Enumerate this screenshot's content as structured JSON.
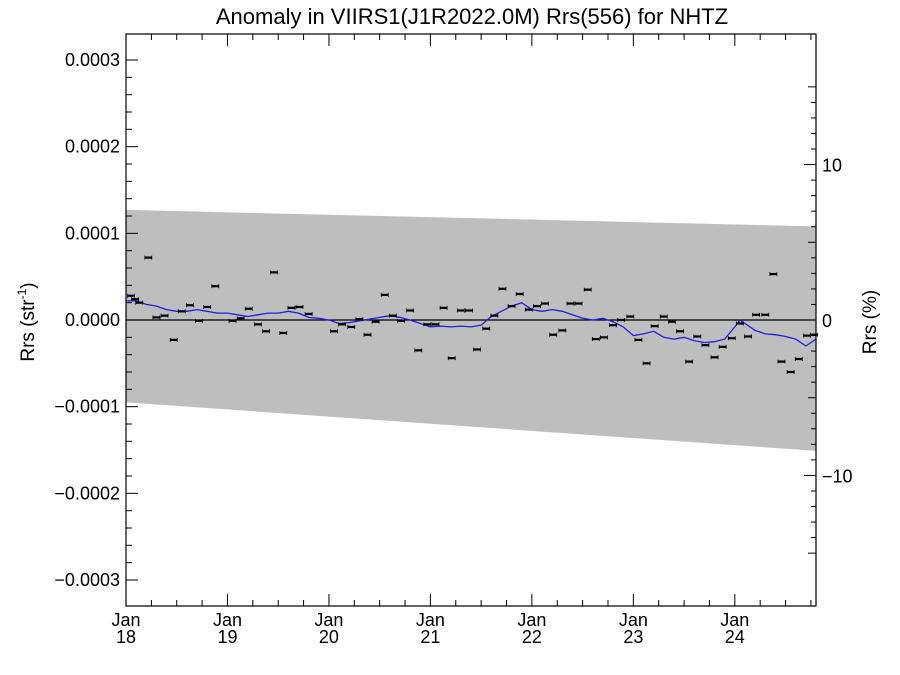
{
  "chart_data": {
    "type": "scatter",
    "title": "Anomaly in VIIRS1(J1R2022.0M) Rrs(556) for NHTZ",
    "ylabel_left": {
      "base": "Rrs (str",
      "sup": "-1",
      "close": ")"
    },
    "ylabel_right": "Rrs (%)",
    "xlim": [
      2018.0,
      2024.8
    ],
    "ylim": [
      -0.00033,
      0.00033
    ],
    "ylim_right_percent": [
      -18.4,
      18.4
    ],
    "x_ticks": [
      {
        "value": 2018,
        "month": "Jan",
        "year": "18"
      },
      {
        "value": 2019,
        "month": "Jan",
        "year": "19"
      },
      {
        "value": 2020,
        "month": "Jan",
        "year": "20"
      },
      {
        "value": 2021,
        "month": "Jan",
        "year": "21"
      },
      {
        "value": 2022,
        "month": "Jan",
        "year": "22"
      },
      {
        "value": 2023,
        "month": "Jan",
        "year": "23"
      },
      {
        "value": 2024,
        "month": "Jan",
        "year": "24"
      }
    ],
    "y_ticks_left": [
      {
        "value": 0.0003,
        "label": "0.0003"
      },
      {
        "value": 0.0002,
        "label": "0.0002"
      },
      {
        "value": 0.0001,
        "label": "0.0001"
      },
      {
        "value": 0.0,
        "label": "0.0000"
      },
      {
        "value": -0.0001,
        "label": "−0.0001"
      },
      {
        "value": -0.0002,
        "label": "−0.0002"
      },
      {
        "value": -0.0003,
        "label": "−0.0003"
      }
    ],
    "y_ticks_right": [
      {
        "value": 10,
        "label": "10"
      },
      {
        "value": 0,
        "label": "0"
      },
      {
        "value": -10,
        "label": "−10"
      }
    ],
    "band": {
      "color": "#bebebe",
      "upper": [
        [
          2018.0,
          0.000127
        ],
        [
          2024.8,
          0.000108
        ]
      ],
      "lower": [
        [
          2018.0,
          -9.5e-05
        ],
        [
          2024.8,
          -0.000151
        ]
      ]
    },
    "zero_line": true,
    "points_color": "#000000",
    "points": [
      [
        2018.05,
        2.8e-05
      ],
      [
        2018.09,
        2.4e-05
      ],
      [
        2018.13,
        2e-05
      ],
      [
        2018.22,
        7.2e-05
      ],
      [
        2018.3,
        3e-06
      ],
      [
        2018.38,
        5e-06
      ],
      [
        2018.47,
        -2.3e-05
      ],
      [
        2018.55,
        1e-05
      ],
      [
        2018.63,
        1.7e-05
      ],
      [
        2018.72,
        -1e-06
      ],
      [
        2018.8,
        1.5e-05
      ],
      [
        2018.88,
        3.9e-05
      ],
      [
        2019.05,
        -1e-06
      ],
      [
        2019.13,
        2e-06
      ],
      [
        2019.21,
        1.3e-05
      ],
      [
        2019.3,
        -5e-06
      ],
      [
        2019.38,
        -1.3e-05
      ],
      [
        2019.46,
        5.5e-05
      ],
      [
        2019.55,
        -1.5e-05
      ],
      [
        2019.63,
        1.4e-05
      ],
      [
        2019.71,
        1.5e-05
      ],
      [
        2019.8,
        7e-06
      ],
      [
        2020.05,
        -1.3e-05
      ],
      [
        2020.13,
        -5e-06
      ],
      [
        2020.22,
        -8e-06
      ],
      [
        2020.3,
        1e-06
      ],
      [
        2020.38,
        -1.7e-05
      ],
      [
        2020.46,
        -2e-06
      ],
      [
        2020.55,
        2.9e-05
      ],
      [
        2020.63,
        5e-06
      ],
      [
        2020.71,
        -1e-06
      ],
      [
        2020.8,
        1.1e-05
      ],
      [
        2020.88,
        -3.5e-05
      ],
      [
        2020.97,
        -5e-06
      ],
      [
        2021.05,
        -5e-06
      ],
      [
        2021.13,
        1.4e-05
      ],
      [
        2021.21,
        -4.4e-05
      ],
      [
        2021.3,
        1.1e-05
      ],
      [
        2021.38,
        1.1e-05
      ],
      [
        2021.46,
        -3.4e-05
      ],
      [
        2021.55,
        -1e-05
      ],
      [
        2021.63,
        5e-06
      ],
      [
        2021.71,
        3.6e-05
      ],
      [
        2021.8,
        1.6e-05
      ],
      [
        2021.88,
        3e-05
      ],
      [
        2021.97,
        1.2e-05
      ],
      [
        2022.05,
        1.6e-05
      ],
      [
        2022.13,
        1.9e-05
      ],
      [
        2022.21,
        -1.7e-05
      ],
      [
        2022.3,
        -1.2e-05
      ],
      [
        2022.38,
        1.9e-05
      ],
      [
        2022.46,
        1.9e-05
      ],
      [
        2022.55,
        3.5e-05
      ],
      [
        2022.63,
        -2.2e-05
      ],
      [
        2022.71,
        -2e-05
      ],
      [
        2022.8,
        -6e-06
      ],
      [
        2022.88,
        0.0
      ],
      [
        2022.97,
        4e-06
      ],
      [
        2023.05,
        -2.3e-05
      ],
      [
        2023.13,
        -5e-05
      ],
      [
        2023.21,
        -7e-06
      ],
      [
        2023.3,
        4e-06
      ],
      [
        2023.38,
        -2e-06
      ],
      [
        2023.46,
        -1.3e-05
      ],
      [
        2023.55,
        -4.8e-05
      ],
      [
        2023.63,
        -1.9e-05
      ],
      [
        2023.71,
        -2.9e-05
      ],
      [
        2023.8,
        -4.3e-05
      ],
      [
        2023.88,
        -3.1e-05
      ],
      [
        2023.97,
        -2.1e-05
      ],
      [
        2024.05,
        -4e-06
      ],
      [
        2024.13,
        -1.9e-05
      ],
      [
        2024.21,
        6e-06
      ],
      [
        2024.3,
        6e-06
      ],
      [
        2024.38,
        5.3e-05
      ],
      [
        2024.46,
        -4.8e-05
      ],
      [
        2024.55,
        -6e-05
      ],
      [
        2024.63,
        -4.5e-05
      ],
      [
        2024.71,
        -1.8e-05
      ],
      [
        2024.78,
        -1.7e-05
      ]
    ],
    "trend_color": "#1f1fe0",
    "trend": [
      [
        2018.0,
        2.2e-05
      ],
      [
        2018.1,
        2.2e-05
      ],
      [
        2018.2,
        1.8e-05
      ],
      [
        2018.3,
        1.6e-05
      ],
      [
        2018.4,
        1.2e-05
      ],
      [
        2018.5,
        1e-05
      ],
      [
        2018.6,
        1e-05
      ],
      [
        2018.7,
        1.2e-05
      ],
      [
        2018.8,
        1e-05
      ],
      [
        2018.9,
        8e-06
      ],
      [
        2019.0,
        8e-06
      ],
      [
        2019.1,
        6e-06
      ],
      [
        2019.2,
        4e-06
      ],
      [
        2019.3,
        6e-06
      ],
      [
        2019.4,
        8e-06
      ],
      [
        2019.5,
        8e-06
      ],
      [
        2019.6,
        1e-05
      ],
      [
        2019.7,
        8e-06
      ],
      [
        2019.8,
        3e-06
      ],
      [
        2019.9,
        2e-06
      ],
      [
        2020.0,
        0.0
      ],
      [
        2020.1,
        -4e-06
      ],
      [
        2020.2,
        -3e-06
      ],
      [
        2020.3,
        -1e-06
      ],
      [
        2020.4,
        1e-06
      ],
      [
        2020.5,
        3e-06
      ],
      [
        2020.6,
        5e-06
      ],
      [
        2020.7,
        3e-06
      ],
      [
        2020.8,
        0.0
      ],
      [
        2020.9,
        -4e-06
      ],
      [
        2021.0,
        -8e-06
      ],
      [
        2021.1,
        -7e-06
      ],
      [
        2021.2,
        -8e-06
      ],
      [
        2021.3,
        -7e-06
      ],
      [
        2021.4,
        -8e-06
      ],
      [
        2021.5,
        -6e-06
      ],
      [
        2021.6,
        4e-06
      ],
      [
        2021.7,
        1e-05
      ],
      [
        2021.8,
        1.6e-05
      ],
      [
        2021.9,
        2e-05
      ],
      [
        2022.0,
        1.2e-05
      ],
      [
        2022.1,
        1e-05
      ],
      [
        2022.2,
        1.2e-05
      ],
      [
        2022.3,
        1e-05
      ],
      [
        2022.4,
        6e-06
      ],
      [
        2022.5,
        2e-06
      ],
      [
        2022.6,
        0.0
      ],
      [
        2022.7,
        2e-06
      ],
      [
        2022.8,
        -2e-06
      ],
      [
        2022.9,
        -8e-06
      ],
      [
        2023.0,
        -1.8e-05
      ],
      [
        2023.1,
        -1.6e-05
      ],
      [
        2023.2,
        -1.3e-05
      ],
      [
        2023.3,
        -2e-05
      ],
      [
        2023.4,
        -2.2e-05
      ],
      [
        2023.5,
        -2e-05
      ],
      [
        2023.6,
        -2.4e-05
      ],
      [
        2023.7,
        -2.6e-05
      ],
      [
        2023.8,
        -2.5e-05
      ],
      [
        2023.9,
        -2.2e-05
      ],
      [
        2024.0,
        -8e-06
      ],
      [
        2024.05,
        0.0
      ],
      [
        2024.1,
        -4e-06
      ],
      [
        2024.2,
        -1.2e-05
      ],
      [
        2024.3,
        -1.6e-05
      ],
      [
        2024.4,
        -1.7e-05
      ],
      [
        2024.5,
        -1.9e-05
      ],
      [
        2024.6,
        -2.2e-05
      ],
      [
        2024.7,
        -3e-05
      ],
      [
        2024.8,
        -2.2e-05
      ]
    ],
    "grid": false,
    "legend": "none"
  }
}
